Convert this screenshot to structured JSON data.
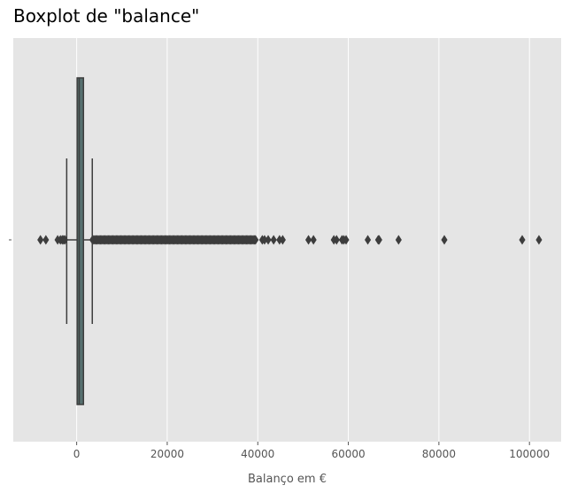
{
  "chart_data": {
    "type": "boxplot",
    "title": "Boxplot de \"balance\"",
    "xlabel": "Balanço em €",
    "ylabel": "",
    "xlim": [
      -14000,
      107000
    ],
    "x_ticks": [
      0,
      20000,
      40000,
      60000,
      80000,
      100000
    ],
    "x_tick_labels": [
      "0",
      "20000",
      "40000",
      "60000",
      "80000",
      "100000"
    ],
    "grid": true,
    "orientation": "horizontal",
    "box": {
      "whisker_low": -2200,
      "q1": 100,
      "median": 550,
      "q3": 1500,
      "whisker_high": 3450
    },
    "outliers": [
      -8000,
      -6800,
      -4200,
      -3600,
      -3200,
      -2900,
      -2600,
      41000,
      41500,
      42300,
      43500,
      44800,
      45500,
      51200,
      52300,
      56800,
      57400,
      58600,
      59000,
      59500,
      64300,
      66600,
      66800,
      71100,
      81200,
      98400,
      102100
    ],
    "outlier_dense_range": [
      3500,
      39500
    ],
    "colors": {
      "background": "#e5e5e5",
      "grid": "#ffffff",
      "box_fill": "#56706f",
      "edge": "#3d3d3d"
    }
  }
}
